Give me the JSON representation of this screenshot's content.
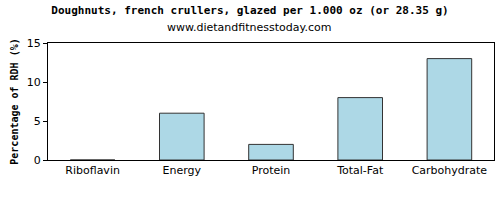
{
  "chart_data": {
    "type": "bar",
    "title": "Doughnuts, french crullers, glazed per 1.000 oz (or 28.35 g)",
    "subtitle": "www.dietandfitnesstoday.com",
    "y_label": "Percentage of RDH (%)",
    "categories": [
      "Riboflavin",
      "Energy",
      "Protein",
      "Total-Fat",
      "Carbohydrate"
    ],
    "values": [
      0,
      6,
      2,
      8,
      13
    ],
    "color": "#add8e6",
    "ylim": [
      0,
      15
    ],
    "yticks": [
      0,
      5,
      10,
      15
    ],
    "grid": false
  }
}
